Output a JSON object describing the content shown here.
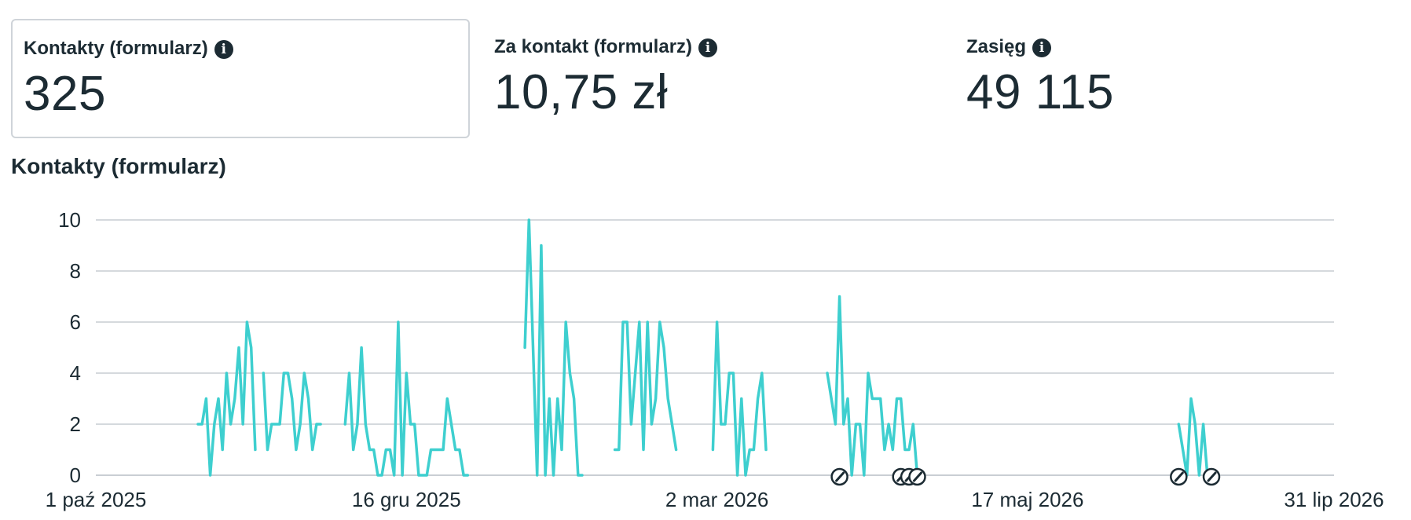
{
  "metrics": [
    {
      "label": "Kontakty (formularz)",
      "value": "325",
      "selected": true,
      "icon": "info-icon"
    },
    {
      "label": "Za kontakt (formularz)",
      "value": "10,75 zł",
      "selected": false,
      "icon": "info-icon"
    },
    {
      "label": "Zasięg",
      "value": "49 115",
      "selected": false,
      "icon": "info-icon"
    }
  ],
  "chart_title": "Kontakty (formularz)",
  "chart_data": {
    "type": "line",
    "title": "Kontakty (formularz)",
    "xlabel": "",
    "ylabel": "",
    "ylim": [
      0,
      10
    ],
    "y_ticks": [
      0,
      2,
      4,
      6,
      8,
      10
    ],
    "x_ticks": [
      {
        "date": "2025-10-01",
        "label": "1 paź 2025"
      },
      {
        "date": "2025-12-16",
        "label": "16 gru 2025"
      },
      {
        "date": "2026-03-02",
        "label": "2 mar 2026"
      },
      {
        "date": "2026-05-17",
        "label": "17 maj 2026"
      },
      {
        "date": "2026-07-31",
        "label": "31 lip 2026"
      }
    ],
    "xlim": [
      "2025-10-01",
      "2026-07-31"
    ],
    "grid": true,
    "legend": "none",
    "series_color": "#3ecfcf",
    "series": [
      {
        "segments": [
          {
            "start": "2025-10-26",
            "values": [
              2,
              2,
              3,
              0,
              2,
              3,
              1,
              4,
              2,
              3,
              5,
              2,
              6,
              5,
              1
            ]
          },
          {
            "start": "2025-11-11",
            "values": [
              4,
              1,
              2,
              2,
              2,
              4,
              4,
              3,
              1,
              2,
              4,
              3,
              1,
              2,
              2
            ]
          },
          {
            "start": "2025-12-01",
            "values": [
              2,
              4,
              1,
              2,
              5,
              2,
              1,
              1,
              0,
              0,
              1,
              1,
              0,
              6,
              0,
              4,
              2,
              2,
              0,
              0,
              0,
              1,
              1,
              1,
              1,
              3,
              2,
              1,
              1,
              0,
              0
            ]
          },
          {
            "start": "2026-01-14",
            "values": [
              5,
              10,
              5,
              0,
              9,
              0,
              3,
              0,
              3,
              1,
              6,
              4,
              3,
              0,
              0
            ]
          },
          {
            "start": "2026-02-05",
            "values": [
              1,
              1,
              6,
              6,
              2,
              4,
              6,
              1,
              6,
              2,
              3,
              6,
              5,
              3,
              2,
              1
            ]
          },
          {
            "start": "2026-03-01",
            "values": [
              1,
              6,
              2,
              2,
              4,
              4,
              0,
              3,
              0,
              1,
              1,
              3,
              4,
              1
            ]
          },
          {
            "start": "2026-03-29",
            "values": [
              4,
              3,
              2,
              7,
              2,
              3,
              0,
              2,
              2,
              0,
              4,
              3,
              3,
              3,
              1,
              2,
              1,
              3,
              3,
              1,
              1,
              2,
              0
            ]
          },
          {
            "start": "2026-06-23",
            "values": [
              2,
              1,
              0,
              3,
              2,
              0,
              2,
              0
            ]
          }
        ]
      }
    ],
    "annotation_markers": [
      {
        "date": "2026-04-01",
        "icon": "pencil-badge-icon"
      },
      {
        "date": "2026-04-16",
        "icon": "pencil-badge-icon"
      },
      {
        "date": "2026-04-18",
        "icon": "pencil-badge-icon"
      },
      {
        "date": "2026-04-20",
        "icon": "pencil-badge-icon"
      },
      {
        "date": "2026-06-23",
        "icon": "pencil-badge-icon"
      },
      {
        "date": "2026-07-01",
        "icon": "pencil-badge-icon"
      }
    ]
  }
}
